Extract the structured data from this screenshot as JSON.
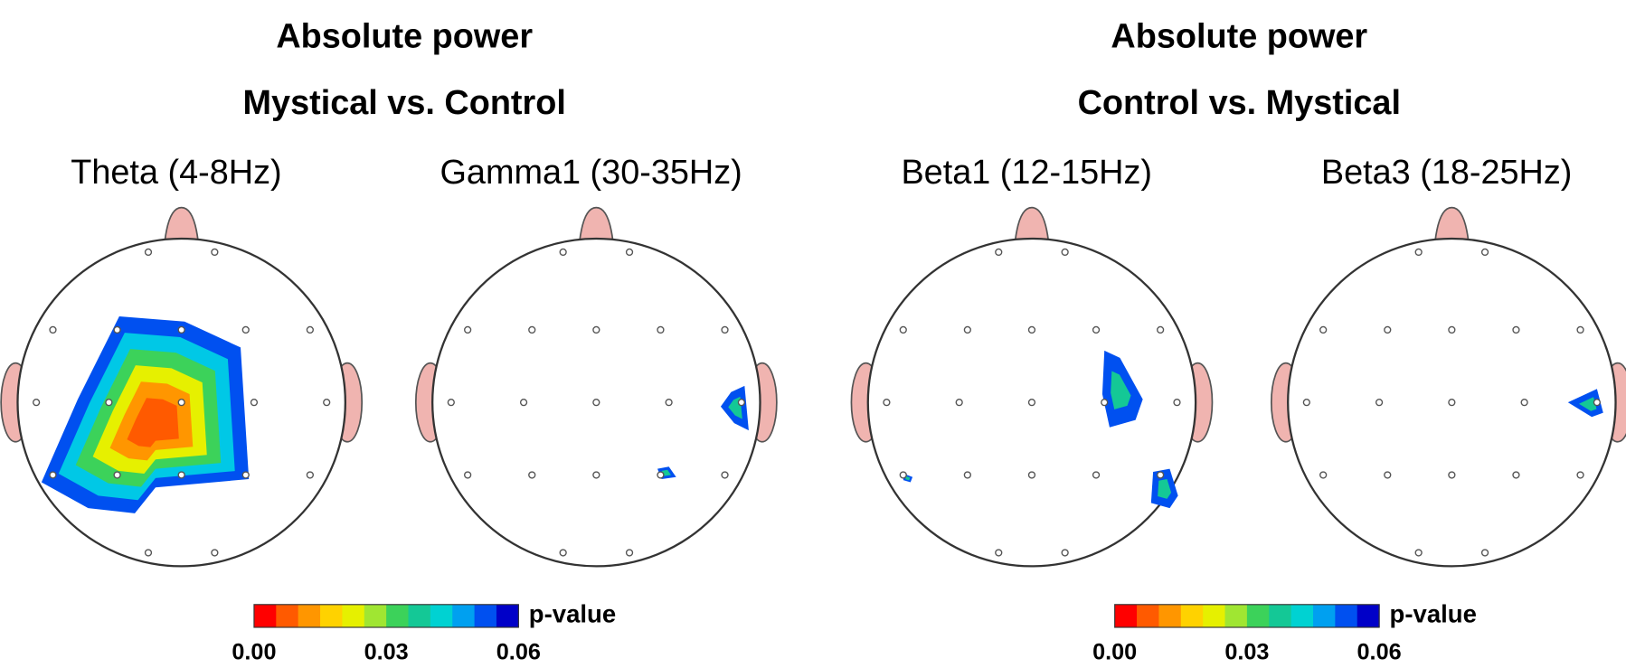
{
  "groups": [
    {
      "title": "Absolute power",
      "subtitle": "Mystical vs. Control",
      "maps": [
        {
          "label": "Theta (4-8Hz)"
        },
        {
          "label": "Gamma1 (30-35Hz)"
        }
      ],
      "colorbar": {
        "label": "p-value",
        "ticks": [
          "0.00",
          "0.03",
          "0.06"
        ],
        "colors": [
          "#ff0000",
          "#ff5a00",
          "#ff9600",
          "#ffd200",
          "#e6f000",
          "#a0e632",
          "#3cd25a",
          "#14c896",
          "#00d2d2",
          "#00a0f0",
          "#0050f0",
          "#0000c8"
        ]
      }
    },
    {
      "title": "Absolute power",
      "subtitle": "Control vs. Mystical",
      "maps": [
        {
          "label": "Beta1 (12-15Hz)"
        },
        {
          "label": "Beta3 (18-25Hz)"
        }
      ],
      "colorbar": {
        "label": "p-value",
        "ticks": [
          "0.00",
          "0.03",
          "0.06"
        ],
        "colors": [
          "#ff0000",
          "#ff5a00",
          "#ff9600",
          "#ffd200",
          "#e6f000",
          "#a0e632",
          "#3cd25a",
          "#14c896",
          "#00d2d2",
          "#00a0f0",
          "#0050f0",
          "#0000c8"
        ]
      }
    }
  ]
}
